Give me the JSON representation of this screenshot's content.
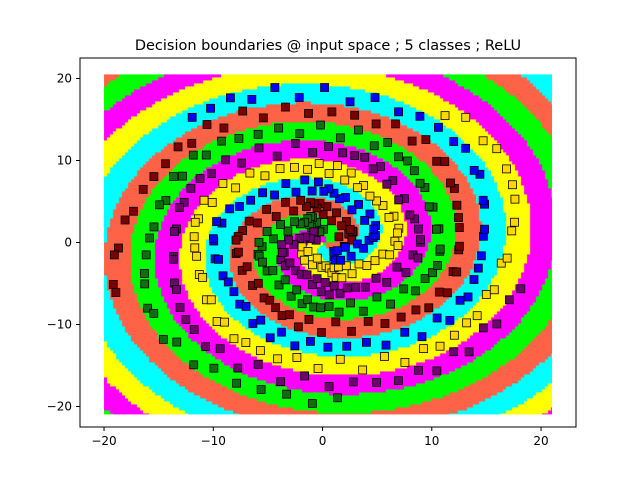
{
  "chart_data": {
    "type": "scatter",
    "title": "Decision boundaries @ input space ; 5 classes ; ReLU",
    "xlabel": "",
    "ylabel": "",
    "xlim": [
      -22.2,
      23.2
    ],
    "ylim": [
      -22.5,
      22.5
    ],
    "x_ticks": [
      -20,
      -10,
      0,
      10,
      20
    ],
    "y_ticks": [
      -20,
      -10,
      0,
      10,
      20
    ],
    "x_tick_labels": [
      "−20",
      "−10",
      "0",
      "10",
      "20"
    ],
    "y_tick_labels": [
      "−20",
      "−10",
      "0",
      "10",
      "20"
    ],
    "grid": false,
    "legend": "none",
    "region_extent": {
      "x": [
        -20,
        21
      ],
      "y": [
        -21,
        20.5
      ]
    },
    "spiral": {
      "arms": 5,
      "theta_start_deg": 0,
      "theta_span_deg": 560,
      "r_min": 1.5,
      "r_max": 19.5
    },
    "series": [
      {
        "class": 0,
        "marker_color": "#7a0000",
        "region_color": "#ff6347",
        "phase_deg": 0,
        "points": [
          [
            1.6,
            0.4
          ],
          [
            4.8,
            3.2
          ],
          [
            7.2,
            6.6
          ],
          [
            8.4,
            10.6
          ],
          [
            7.9,
            14.8
          ],
          [
            5.6,
            17.8
          ],
          [
            2.2,
            19.1
          ],
          [
            0.2,
            19.6
          ]
        ]
      },
      {
        "class": 1,
        "marker_color": "#0f6f0f",
        "region_color": "#00ff00",
        "phase_deg": 72,
        "points": [
          [
            -0.4,
            1.6
          ],
          [
            -4.4,
            2.3
          ],
          [
            -8.6,
            1.4
          ],
          [
            -12.6,
            -1.5
          ],
          [
            -15.3,
            -5.6
          ],
          [
            -16.0,
            -10.4
          ],
          [
            -14.6,
            -14.9
          ],
          [
            -13.2,
            -17.0
          ]
        ]
      },
      {
        "class": 2,
        "marker_color": "#6f006f",
        "region_color": "#ff00ff",
        "phase_deg": 144,
        "points": [
          [
            -1.4,
            -0.9
          ],
          [
            -3.1,
            -4.5
          ],
          [
            -3.0,
            -9.3
          ],
          [
            -1.0,
            -13.6
          ],
          [
            2.6,
            -16.7
          ],
          [
            7.1,
            -17.8
          ],
          [
            11.3,
            -16.4
          ],
          [
            12.9,
            -15.0
          ]
        ]
      },
      {
        "class": 3,
        "marker_color": "#ffd700",
        "region_color": "#ffff00",
        "phase_deg": 216,
        "points": [
          [
            -1.2,
            -1.2
          ],
          [
            1.8,
            -4.0
          ],
          [
            6.1,
            -5.1
          ],
          [
            10.6,
            -3.7
          ],
          [
            14.1,
            -0.5
          ],
          [
            16.1,
            3.5
          ],
          [
            16.4,
            8.0
          ],
          [
            15.5,
            10.5
          ]
        ]
      },
      {
        "class": 4,
        "marker_color": "#0000ff",
        "region_color": "#00ffff",
        "phase_deg": 288,
        "points": [
          [
            0.5,
            1.5
          ],
          [
            1.0,
            5.6
          ],
          [
            -0.4,
            10.0
          ],
          [
            -3.4,
            13.3
          ],
          [
            -7.5,
            15.0
          ],
          [
            -12.0,
            14.6
          ],
          [
            -16.0,
            11.9
          ],
          [
            -17.5,
            10.0
          ]
        ]
      }
    ]
  }
}
